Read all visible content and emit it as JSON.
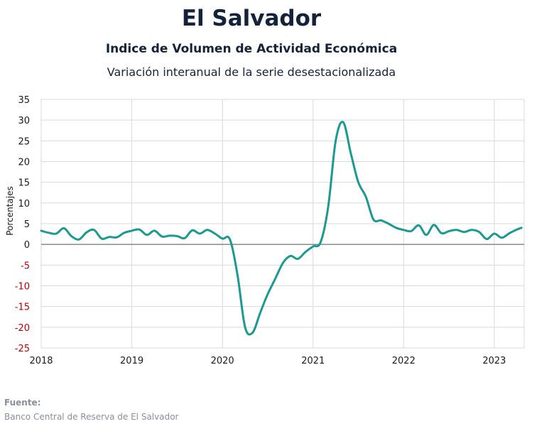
{
  "header": {
    "title": "El Salvador",
    "subtitle": "Indice de Volumen de  Actividad Económica",
    "subtitle2": "Variación interanual de la serie desestacionalizada"
  },
  "source": {
    "label": "Fuente:",
    "text": "Banco Central de Reserva de El Salvador"
  },
  "colors": {
    "line": "#1a9a90",
    "negative_tick": "#c00000",
    "grid": "#d9d9d9",
    "zero_line": "#7f7f7f"
  },
  "chart_data": {
    "type": "line",
    "title": "Indice de Volumen de  Actividad Económica",
    "subtitle": "Variación interanual de la serie desestacionalizada",
    "xlabel": "",
    "ylabel": "Porcentajes",
    "ylim": [
      -25,
      35
    ],
    "yticks": [
      35,
      30,
      25,
      20,
      15,
      10,
      5,
      0,
      -5,
      -10,
      -15,
      -20,
      -25
    ],
    "xlim": [
      2018.0,
      2023.33
    ],
    "xticks": [
      2018,
      2019,
      2020,
      2021,
      2022,
      2023
    ],
    "grid": true,
    "legend": "none",
    "series": [
      {
        "x": [
          2018.0,
          2018.083,
          2018.167,
          2018.25,
          2018.333,
          2018.417,
          2018.5,
          2018.583,
          2018.667,
          2018.75,
          2018.833,
          2018.917,
          2019.0,
          2019.083,
          2019.167,
          2019.25,
          2019.333,
          2019.417,
          2019.5,
          2019.583,
          2019.667,
          2019.75,
          2019.833,
          2019.917,
          2020.0,
          2020.083,
          2020.167,
          2020.25,
          2020.333,
          2020.417,
          2020.5,
          2020.583,
          2020.667,
          2020.75,
          2020.833,
          2020.917,
          2021.0,
          2021.083,
          2021.167,
          2021.25,
          2021.333,
          2021.417,
          2021.5,
          2021.583,
          2021.667,
          2021.75,
          2021.833,
          2021.917,
          2022.0,
          2022.083,
          2022.167,
          2022.25,
          2022.333,
          2022.417,
          2022.5,
          2022.583,
          2022.667,
          2022.75,
          2022.833,
          2022.917,
          2023.0,
          2023.083,
          2023.167,
          2023.25,
          2023.3
        ],
        "values": [
          3.3,
          2.8,
          2.6,
          3.9,
          2.0,
          1.2,
          2.9,
          3.5,
          1.4,
          1.8,
          1.7,
          2.8,
          3.3,
          3.6,
          2.3,
          3.3,
          1.9,
          2.1,
          2.0,
          1.5,
          3.4,
          2.6,
          3.5,
          2.6,
          1.4,
          1.2,
          -7.5,
          -20.0,
          -21.3,
          -16.5,
          -12.0,
          -8.3,
          -4.5,
          -2.8,
          -3.5,
          -1.8,
          -0.5,
          0.5,
          9.0,
          25.0,
          29.5,
          22.0,
          15.0,
          11.5,
          6.0,
          5.8,
          5.0,
          4.0,
          3.5,
          3.2,
          4.6,
          2.3,
          4.7,
          2.7,
          3.2,
          3.5,
          3.0,
          3.5,
          3.0,
          1.3,
          2.6,
          1.6,
          2.7,
          3.6,
          4.0
        ]
      }
    ]
  }
}
